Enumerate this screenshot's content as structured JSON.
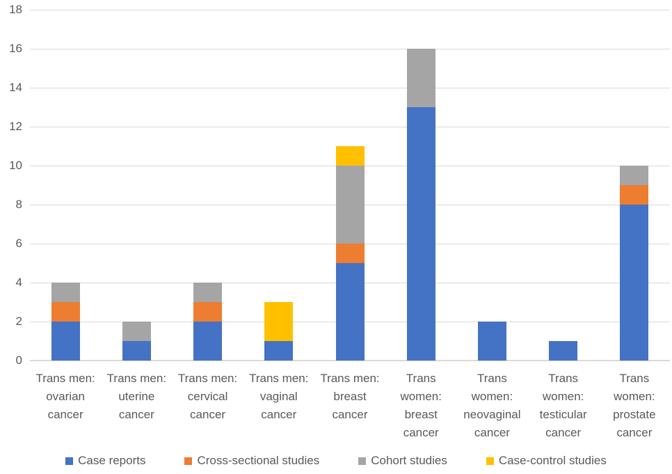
{
  "chart_data": {
    "type": "bar",
    "stacked": true,
    "title": "",
    "xlabel": "",
    "ylabel": "",
    "ylim": [
      0,
      18
    ],
    "ytick_step": 2,
    "grid": true,
    "legend_position": "bottom",
    "categories": [
      "Trans men: ovarian cancer",
      "Trans men: uterine cancer",
      "Trans men: cervical cancer",
      "Trans men: vaginal cancer",
      "Trans men: breast cancer",
      "Trans women: breast cancer",
      "Trans women: neovaginal cancer",
      "Trans women: testicular cancer",
      "Trans women: prostate cancer"
    ],
    "category_lines": [
      [
        "Trans men:",
        "ovarian",
        "cancer"
      ],
      [
        "Trans men:",
        "uterine",
        "cancer"
      ],
      [
        "Trans men:",
        "cervical",
        "cancer"
      ],
      [
        "Trans men:",
        "vaginal",
        "cancer"
      ],
      [
        "Trans men:",
        "breast",
        "cancer"
      ],
      [
        "Trans",
        "women:",
        "breast",
        "cancer"
      ],
      [
        "Trans",
        "women:",
        "neovaginal",
        "cancer"
      ],
      [
        "Trans",
        "women:",
        "testicular",
        "cancer"
      ],
      [
        "Trans",
        "women:",
        "prostate",
        "cancer"
      ]
    ],
    "series": [
      {
        "name": "Case reports",
        "color": "#4472C4",
        "values": [
          2,
          1,
          2,
          1,
          5,
          13,
          2,
          1,
          8
        ]
      },
      {
        "name": "Cross-sectional studies",
        "color": "#ED7D31",
        "values": [
          1,
          0,
          1,
          0,
          1,
          0,
          0,
          0,
          1
        ]
      },
      {
        "name": "Cohort studies",
        "color": "#A5A5A5",
        "values": [
          1,
          1,
          1,
          0,
          4,
          3,
          0,
          0,
          1
        ]
      },
      {
        "name": "Case-control studies",
        "color": "#FFC000",
        "values": [
          0,
          0,
          0,
          2,
          1,
          0,
          0,
          0,
          0
        ]
      }
    ],
    "totals": [
      4,
      2,
      4,
      3,
      11,
      16,
      2,
      1,
      10
    ],
    "colors": {
      "grid": "#D9D9D9",
      "axis_text": "#595959",
      "background": "#FFFFFF"
    }
  }
}
